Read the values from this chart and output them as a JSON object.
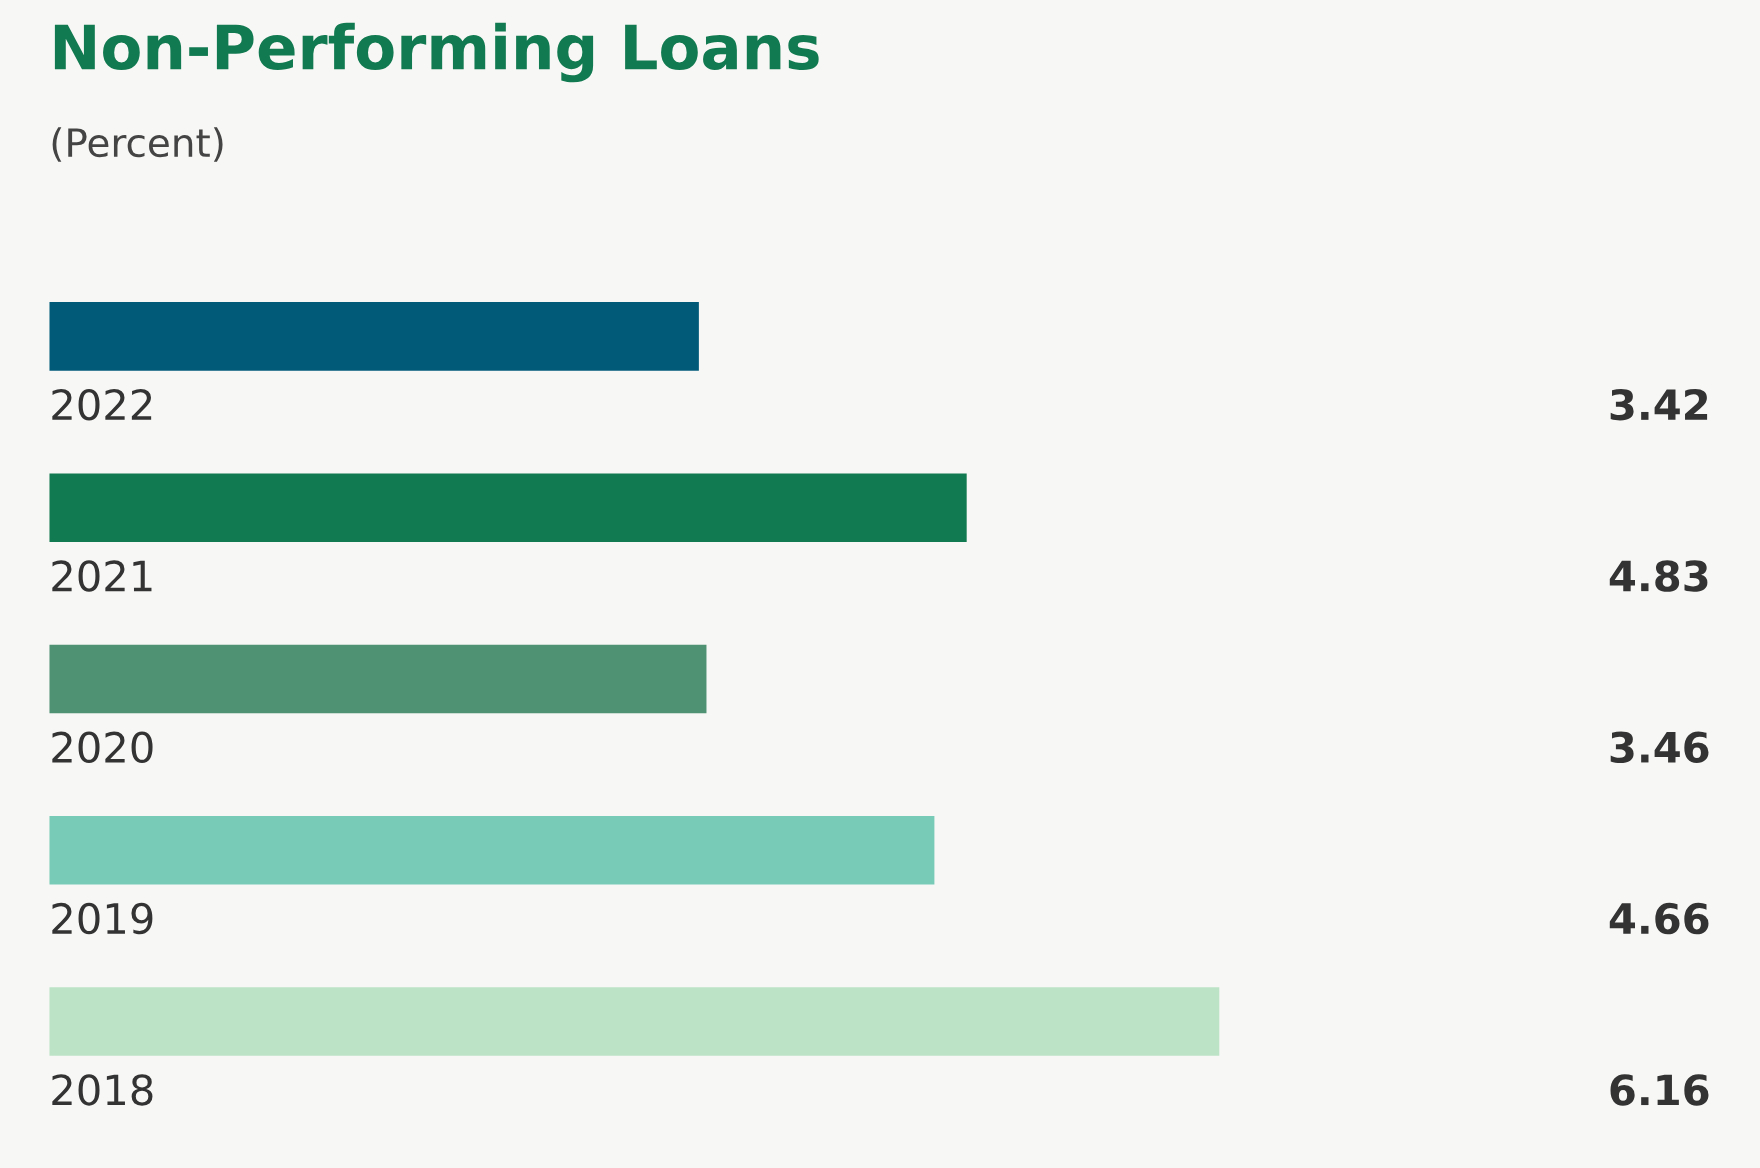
{
  "chart_data": {
    "type": "bar",
    "orientation": "horizontal",
    "title": "Non-Performing Loans",
    "subtitle": "(Percent)",
    "categories": [
      "2022",
      "2021",
      "2020",
      "2019",
      "2018"
    ],
    "values": [
      3.42,
      4.83,
      3.46,
      4.66,
      6.16
    ],
    "colors": [
      "#005a78",
      "#127a50",
      "#4e9173",
      "#78cbb7",
      "#bde3c6"
    ],
    "data_labels": true
  }
}
